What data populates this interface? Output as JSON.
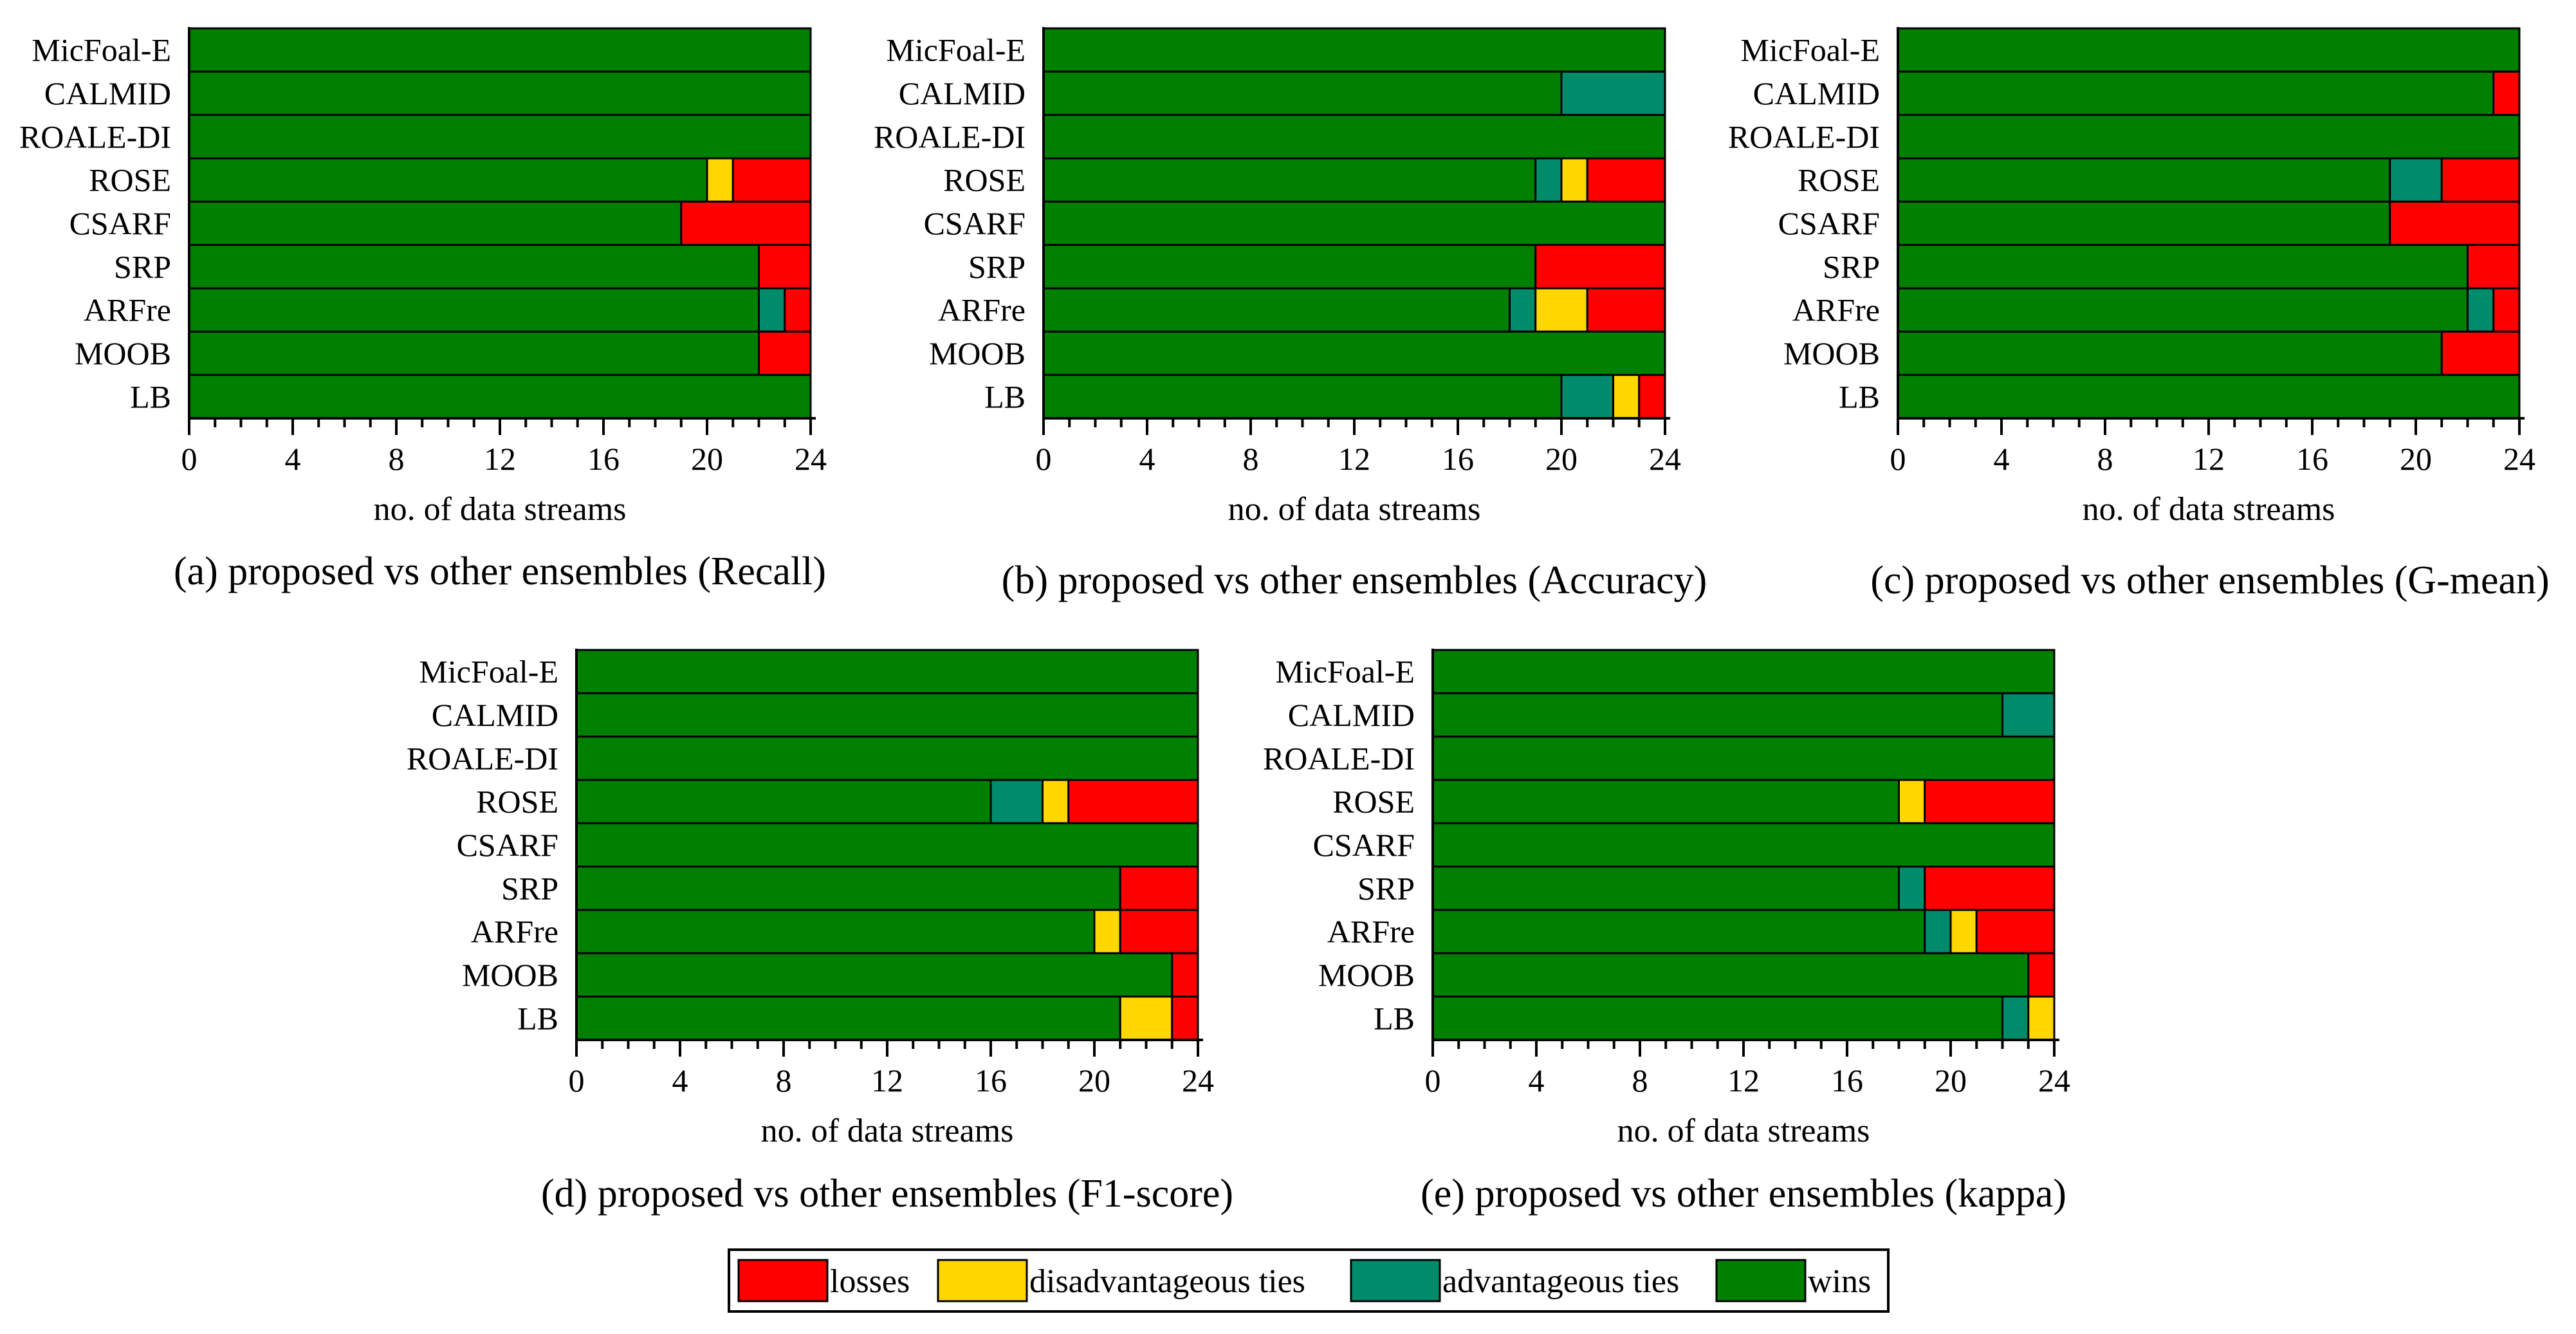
{
  "colors": {
    "losses": "#ff0000",
    "disadvantageous_ties": "#ffd700",
    "advantageous_ties": "#008b6b",
    "wins": "#008000"
  },
  "legend": {
    "losses": "losses",
    "disadvantageous_ties": "disadvantageous ties",
    "advantageous_ties": "advantageous ties",
    "wins": "wins"
  },
  "chart_data": [
    {
      "type": "bar",
      "orientation": "horizontal-stacked",
      "panel": "a",
      "title": "(a) proposed vs other ensembles (Recall)",
      "xlabel": "no. of data streams",
      "xlim": [
        0,
        24
      ],
      "xticks": [
        0,
        4,
        8,
        12,
        16,
        20,
        24
      ],
      "categories": [
        "MicFoal-E",
        "CALMID",
        "ROALE-DI",
        "ROSE",
        "CSARF",
        "SRP",
        "ARFre",
        "MOOB",
        "LB"
      ],
      "series": [
        {
          "name": "wins",
          "values": [
            24,
            24,
            24,
            20,
            19,
            22,
            22,
            22,
            24
          ]
        },
        {
          "name": "advantageous ties",
          "values": [
            0,
            0,
            0,
            0,
            0,
            0,
            1,
            0,
            0
          ]
        },
        {
          "name": "disadvantageous ties",
          "values": [
            0,
            0,
            0,
            1,
            0,
            0,
            0,
            0,
            0
          ]
        },
        {
          "name": "losses",
          "values": [
            0,
            0,
            0,
            3,
            5,
            2,
            1,
            2,
            0
          ]
        }
      ]
    },
    {
      "type": "bar",
      "orientation": "horizontal-stacked",
      "panel": "b",
      "title": "(b) proposed vs other ensembles (Accuracy)",
      "xlabel": "no. of data streams",
      "xlim": [
        0,
        24
      ],
      "xticks": [
        0,
        4,
        8,
        12,
        16,
        20,
        24
      ],
      "categories": [
        "MicFoal-E",
        "CALMID",
        "ROALE-DI",
        "ROSE",
        "CSARF",
        "SRP",
        "ARFre",
        "MOOB",
        "LB"
      ],
      "series": [
        {
          "name": "wins",
          "values": [
            24,
            20,
            24,
            19,
            24,
            19,
            18,
            24,
            20
          ]
        },
        {
          "name": "advantageous ties",
          "values": [
            0,
            4,
            0,
            1,
            0,
            0,
            1,
            0,
            2
          ]
        },
        {
          "name": "disadvantageous ties",
          "values": [
            0,
            0,
            0,
            1,
            0,
            0,
            2,
            0,
            1
          ]
        },
        {
          "name": "losses",
          "values": [
            0,
            0,
            0,
            3,
            0,
            5,
            3,
            0,
            1
          ]
        }
      ]
    },
    {
      "type": "bar",
      "orientation": "horizontal-stacked",
      "panel": "c",
      "title": "(c) proposed vs other ensembles (G-mean)",
      "xlabel": "no. of data streams",
      "xlim": [
        0,
        24
      ],
      "xticks": [
        0,
        4,
        8,
        12,
        16,
        20,
        24
      ],
      "categories": [
        "MicFoal-E",
        "CALMID",
        "ROALE-DI",
        "ROSE",
        "CSARF",
        "SRP",
        "ARFre",
        "MOOB",
        "LB"
      ],
      "series": [
        {
          "name": "wins",
          "values": [
            24,
            23,
            24,
            19,
            19,
            22,
            22,
            21,
            24
          ]
        },
        {
          "name": "advantageous ties",
          "values": [
            0,
            0,
            0,
            2,
            0,
            0,
            1,
            0,
            0
          ]
        },
        {
          "name": "disadvantageous ties",
          "values": [
            0,
            0,
            0,
            0,
            0,
            0,
            0,
            0,
            0
          ]
        },
        {
          "name": "losses",
          "values": [
            0,
            1,
            0,
            3,
            5,
            2,
            1,
            3,
            0
          ]
        }
      ]
    },
    {
      "type": "bar",
      "orientation": "horizontal-stacked",
      "panel": "d",
      "title": "(d) proposed vs other ensembles (F1-score)",
      "xlabel": "no. of data streams",
      "xlim": [
        0,
        24
      ],
      "xticks": [
        0,
        4,
        8,
        12,
        16,
        20,
        24
      ],
      "categories": [
        "MicFoal-E",
        "CALMID",
        "ROALE-DI",
        "ROSE",
        "CSARF",
        "SRP",
        "ARFre",
        "MOOB",
        "LB"
      ],
      "series": [
        {
          "name": "wins",
          "values": [
            24,
            24,
            24,
            16,
            24,
            21,
            20,
            23,
            21
          ]
        },
        {
          "name": "advantageous ties",
          "values": [
            0,
            0,
            0,
            2,
            0,
            0,
            0,
            0,
            0
          ]
        },
        {
          "name": "disadvantageous ties",
          "values": [
            0,
            0,
            0,
            1,
            0,
            0,
            1,
            0,
            2
          ]
        },
        {
          "name": "losses",
          "values": [
            0,
            0,
            0,
            5,
            0,
            3,
            3,
            1,
            1
          ]
        }
      ]
    },
    {
      "type": "bar",
      "orientation": "horizontal-stacked",
      "panel": "e",
      "title": "(e) proposed vs other ensembles (kappa)",
      "xlabel": "no. of data streams",
      "xlim": [
        0,
        24
      ],
      "xticks": [
        0,
        4,
        8,
        12,
        16,
        20,
        24
      ],
      "categories": [
        "MicFoal-E",
        "CALMID",
        "ROALE-DI",
        "ROSE",
        "CSARF",
        "SRP",
        "ARFre",
        "MOOB",
        "LB"
      ],
      "series": [
        {
          "name": "wins",
          "values": [
            24,
            22,
            24,
            18,
            24,
            18,
            19,
            23,
            22
          ]
        },
        {
          "name": "advantageous ties",
          "values": [
            0,
            2,
            0,
            0,
            0,
            1,
            1,
            0,
            1
          ]
        },
        {
          "name": "disadvantageous ties",
          "values": [
            0,
            0,
            0,
            1,
            0,
            0,
            1,
            0,
            1
          ]
        },
        {
          "name": "losses",
          "values": [
            0,
            0,
            0,
            5,
            0,
            5,
            3,
            1,
            0
          ]
        }
      ]
    }
  ]
}
